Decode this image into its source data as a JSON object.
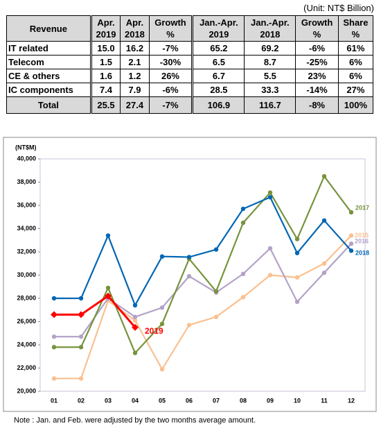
{
  "unit": "(Unit: NT$ Billion)",
  "table": {
    "header": [
      "Revenue",
      "Apr.\n2019",
      "Apr.\n2018",
      "Growth\n%",
      "Jan.-Apr.\n2019",
      "Jan.-Apr.\n2018",
      "Growth\n%",
      "Share\n%"
    ],
    "rows": [
      [
        "IT related",
        "15.0",
        "16.2",
        "-7%",
        "65.2",
        "69.2",
        "-6%",
        "61%"
      ],
      [
        "Telecom",
        "1.5",
        "2.1",
        "-30%",
        "6.5",
        "8.7",
        "-25%",
        "6%"
      ],
      [
        "CE & others",
        "1.6",
        "1.2",
        "26%",
        "6.7",
        "5.5",
        "23%",
        "6%"
      ],
      [
        "IC components",
        "7.4",
        "7.9",
        "-6%",
        "28.5",
        "33.3",
        "-14%",
        "27%"
      ]
    ],
    "total": [
      "Total",
      "25.5",
      "27.4",
      "-7%",
      "106.9",
      "116.7",
      "-8%",
      "100%"
    ]
  },
  "chart_data": {
    "type": "line",
    "y_label": "(NT$M)",
    "categories": [
      "01",
      "02",
      "03",
      "04",
      "05",
      "06",
      "07",
      "08",
      "09",
      "10",
      "11",
      "12"
    ],
    "ylim": [
      20000,
      40000
    ],
    "yticks": [
      {
        "value": 20000,
        "label": "20,000"
      },
      {
        "value": 22000,
        "label": "22,000"
      },
      {
        "value": 24000,
        "label": "24,000"
      },
      {
        "value": 26000,
        "label": "26,000"
      },
      {
        "value": 28000,
        "label": "28,000"
      },
      {
        "value": 30000,
        "label": "30,000"
      },
      {
        "value": 32000,
        "label": "32,000"
      },
      {
        "value": 34000,
        "label": "34,000"
      },
      {
        "value": 36000,
        "label": "36,000"
      },
      {
        "value": 38000,
        "label": "38,000"
      },
      {
        "value": 40000,
        "label": "40,000"
      }
    ],
    "series": [
      {
        "name": "2015",
        "color": "#fac090",
        "values": [
          21100,
          21100,
          27800,
          26100,
          21900,
          25700,
          26400,
          28100,
          30000,
          29800,
          31000,
          33400
        ]
      },
      {
        "name": "2016",
        "color": "#b3a2c7",
        "values": [
          24700,
          24700,
          28000,
          26400,
          27200,
          29900,
          28500,
          30100,
          32300,
          27700,
          30200,
          32700
        ]
      },
      {
        "name": "2017",
        "color": "#77933c",
        "values": [
          23800,
          23800,
          28900,
          23300,
          25800,
          31400,
          28600,
          34500,
          37100,
          33100,
          38500,
          35400
        ]
      },
      {
        "name": "2018",
        "color": "#0066b3",
        "values": [
          28000,
          28000,
          33400,
          27400,
          31600,
          31550,
          32200,
          35700,
          36700,
          31900,
          34700,
          32100
        ]
      },
      {
        "name": "2019",
        "color": "#ff0000",
        "values": [
          26600,
          26600,
          28200,
          25500,
          null,
          null,
          null,
          null,
          null,
          null,
          null,
          null
        ]
      }
    ],
    "note": "Note : Jan. and Feb. were adjusted by the two months average amount."
  }
}
